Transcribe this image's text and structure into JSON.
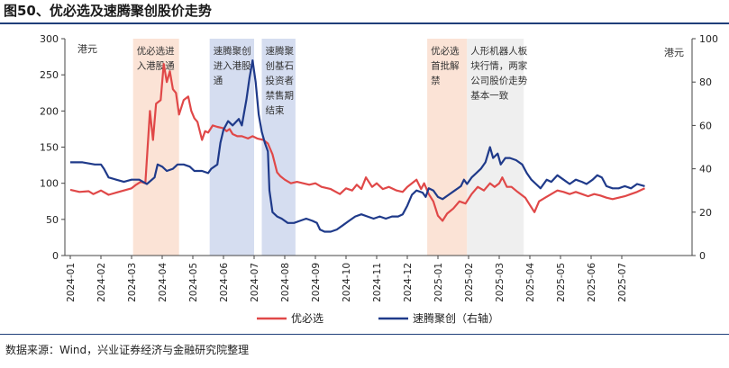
{
  "title": "图50、优必选及速腾聚创股价走势",
  "source": "数据来源：Wind，兴业证券经济与金融研究院整理",
  "colors": {
    "ubtech": "#e04848",
    "robosense": "#1f3a8a",
    "band_orange": "#fbe3d6",
    "band_blue": "#d5ddf0",
    "band_gray": "#efefef"
  },
  "chart_data": {
    "type": "line",
    "title": "图50、优必选及速腾聚创股价走势",
    "xlabel": "",
    "ylabel": "港元",
    "y2label": "港元",
    "ylim": [
      0,
      300
    ],
    "y2lim": [
      0,
      100
    ],
    "yticks": [
      "0",
      "50",
      "100",
      "150",
      "200",
      "250",
      "300"
    ],
    "y2ticks": [
      "0",
      "20",
      "40",
      "60",
      "80",
      "100"
    ],
    "xticks": [
      "2024-01",
      "2024-02",
      "2024-03",
      "2024-04",
      "2024-05",
      "2024-06",
      "2024-07",
      "2024-08",
      "2024-09",
      "2024-10",
      "2024-11",
      "2024-12",
      "2025-01",
      "2025-02",
      "2025-03",
      "2025-04",
      "2025-05",
      "2025-06",
      "2025-07"
    ],
    "x_range": [
      0,
      18.75
    ],
    "legend": [
      "优必选",
      "速腾聚创（右轴）"
    ],
    "series": [
      {
        "name": "优必选",
        "axis": "left",
        "points": [
          [
            0,
            91
          ],
          [
            0.3,
            88
          ],
          [
            0.6,
            89
          ],
          [
            0.75,
            85
          ],
          [
            1.0,
            90
          ],
          [
            1.25,
            84
          ],
          [
            1.5,
            87
          ],
          [
            1.75,
            90
          ],
          [
            2.0,
            93
          ],
          [
            2.15,
            98
          ],
          [
            2.3,
            102
          ],
          [
            2.45,
            100
          ],
          [
            2.6,
            200
          ],
          [
            2.7,
            160
          ],
          [
            2.8,
            210
          ],
          [
            2.95,
            215
          ],
          [
            3.05,
            265
          ],
          [
            3.15,
            240
          ],
          [
            3.25,
            255
          ],
          [
            3.35,
            230
          ],
          [
            3.45,
            225
          ],
          [
            3.55,
            195
          ],
          [
            3.7,
            215
          ],
          [
            3.85,
            220
          ],
          [
            3.95,
            200
          ],
          [
            4.05,
            190
          ],
          [
            4.15,
            185
          ],
          [
            4.3,
            160
          ],
          [
            4.4,
            172
          ],
          [
            4.5,
            170
          ],
          [
            4.65,
            180
          ],
          [
            4.8,
            178
          ],
          [
            5.0,
            176
          ],
          [
            5.1,
            172
          ],
          [
            5.2,
            175
          ],
          [
            5.3,
            168
          ],
          [
            5.45,
            165
          ],
          [
            5.6,
            165
          ],
          [
            5.8,
            162
          ],
          [
            5.95,
            165
          ],
          [
            6.1,
            162
          ],
          [
            6.3,
            160
          ],
          [
            6.45,
            155
          ],
          [
            6.6,
            140
          ],
          [
            6.75,
            115
          ],
          [
            6.85,
            110
          ],
          [
            7.0,
            105
          ],
          [
            7.2,
            100
          ],
          [
            7.4,
            102
          ],
          [
            7.6,
            100
          ],
          [
            7.8,
            98
          ],
          [
            8.0,
            100
          ],
          [
            8.2,
            95
          ],
          [
            8.5,
            92
          ],
          [
            8.8,
            85
          ],
          [
            9.0,
            93
          ],
          [
            9.2,
            90
          ],
          [
            9.35,
            98
          ],
          [
            9.5,
            92
          ],
          [
            9.65,
            108
          ],
          [
            9.85,
            95
          ],
          [
            10.0,
            100
          ],
          [
            10.2,
            92
          ],
          [
            10.4,
            95
          ],
          [
            10.65,
            90
          ],
          [
            10.85,
            88
          ],
          [
            11.0,
            95
          ],
          [
            11.15,
            100
          ],
          [
            11.3,
            105
          ],
          [
            11.45,
            92
          ],
          [
            11.55,
            100
          ],
          [
            11.7,
            85
          ],
          [
            11.85,
            75
          ],
          [
            12.0,
            55
          ],
          [
            12.15,
            48
          ],
          [
            12.3,
            58
          ],
          [
            12.5,
            65
          ],
          [
            12.7,
            75
          ],
          [
            12.9,
            72
          ],
          [
            13.1,
            85
          ],
          [
            13.3,
            95
          ],
          [
            13.5,
            90
          ],
          [
            13.7,
            100
          ],
          [
            13.85,
            95
          ],
          [
            14.0,
            100
          ],
          [
            14.1,
            108
          ],
          [
            14.25,
            95
          ],
          [
            14.4,
            95
          ],
          [
            14.6,
            88
          ],
          [
            14.85,
            80
          ],
          [
            15.0,
            70
          ],
          [
            15.15,
            60
          ],
          [
            15.3,
            75
          ],
          [
            15.5,
            80
          ],
          [
            15.7,
            85
          ],
          [
            15.9,
            90
          ],
          [
            16.1,
            88
          ],
          [
            16.3,
            85
          ],
          [
            16.5,
            88
          ],
          [
            16.7,
            85
          ],
          [
            16.9,
            82
          ],
          [
            17.1,
            85
          ],
          [
            17.3,
            83
          ],
          [
            17.5,
            80
          ],
          [
            17.7,
            78
          ],
          [
            17.9,
            80
          ],
          [
            18.1,
            82
          ],
          [
            18.3,
            85
          ],
          [
            18.5,
            88
          ],
          [
            18.75,
            93
          ]
        ]
      },
      {
        "name": "速腾聚创（右轴）",
        "axis": "right",
        "points": [
          [
            0,
            43
          ],
          [
            0.4,
            43
          ],
          [
            0.8,
            42
          ],
          [
            1.0,
            42
          ],
          [
            1.1,
            40
          ],
          [
            1.25,
            36
          ],
          [
            1.5,
            35
          ],
          [
            1.75,
            34
          ],
          [
            2.0,
            35
          ],
          [
            2.25,
            35
          ],
          [
            2.5,
            33
          ],
          [
            2.75,
            36
          ],
          [
            2.85,
            42
          ],
          [
            3.0,
            41
          ],
          [
            3.15,
            39
          ],
          [
            3.35,
            40
          ],
          [
            3.5,
            42
          ],
          [
            3.7,
            42
          ],
          [
            3.9,
            41
          ],
          [
            4.05,
            39
          ],
          [
            4.3,
            39
          ],
          [
            4.5,
            38
          ],
          [
            4.6,
            40
          ],
          [
            4.8,
            42
          ],
          [
            4.9,
            52
          ],
          [
            5.0,
            58
          ],
          [
            5.15,
            62
          ],
          [
            5.3,
            60
          ],
          [
            5.5,
            63
          ],
          [
            5.6,
            60
          ],
          [
            5.75,
            72
          ],
          [
            5.85,
            82
          ],
          [
            5.95,
            90
          ],
          [
            6.05,
            80
          ],
          [
            6.15,
            65
          ],
          [
            6.25,
            57
          ],
          [
            6.35,
            52
          ],
          [
            6.45,
            48
          ],
          [
            6.5,
            30
          ],
          [
            6.6,
            20
          ],
          [
            6.75,
            18
          ],
          [
            6.9,
            17
          ],
          [
            7.1,
            15
          ],
          [
            7.3,
            15
          ],
          [
            7.5,
            16
          ],
          [
            7.7,
            17
          ],
          [
            7.9,
            16
          ],
          [
            8.05,
            15
          ],
          [
            8.15,
            12
          ],
          [
            8.3,
            11
          ],
          [
            8.5,
            11
          ],
          [
            8.7,
            12
          ],
          [
            8.9,
            14
          ],
          [
            9.1,
            16
          ],
          [
            9.3,
            18
          ],
          [
            9.5,
            19
          ],
          [
            9.7,
            18
          ],
          [
            9.9,
            17
          ],
          [
            10.1,
            18
          ],
          [
            10.3,
            17
          ],
          [
            10.5,
            18
          ],
          [
            10.7,
            18
          ],
          [
            10.85,
            19
          ],
          [
            11.0,
            23
          ],
          [
            11.15,
            28
          ],
          [
            11.3,
            30
          ],
          [
            11.5,
            29
          ],
          [
            11.6,
            27
          ],
          [
            11.7,
            31
          ],
          [
            11.85,
            30
          ],
          [
            12.0,
            27
          ],
          [
            12.15,
            26
          ],
          [
            12.35,
            28
          ],
          [
            12.55,
            30
          ],
          [
            12.75,
            32
          ],
          [
            12.85,
            35
          ],
          [
            12.95,
            33
          ],
          [
            13.1,
            36
          ],
          [
            13.25,
            38
          ],
          [
            13.4,
            40
          ],
          [
            13.55,
            43
          ],
          [
            13.7,
            50
          ],
          [
            13.8,
            45
          ],
          [
            13.95,
            47
          ],
          [
            14.05,
            42
          ],
          [
            14.2,
            45
          ],
          [
            14.35,
            45
          ],
          [
            14.55,
            44
          ],
          [
            14.75,
            42
          ],
          [
            14.9,
            38
          ],
          [
            15.05,
            35
          ],
          [
            15.2,
            33
          ],
          [
            15.35,
            31
          ],
          [
            15.55,
            35
          ],
          [
            15.7,
            34
          ],
          [
            15.9,
            37
          ],
          [
            16.1,
            35
          ],
          [
            16.3,
            33
          ],
          [
            16.5,
            35
          ],
          [
            16.7,
            34
          ],
          [
            16.85,
            33
          ],
          [
            17.05,
            35
          ],
          [
            17.2,
            37
          ],
          [
            17.35,
            36
          ],
          [
            17.5,
            32
          ],
          [
            17.7,
            31
          ],
          [
            17.9,
            31
          ],
          [
            18.1,
            32
          ],
          [
            18.3,
            31
          ],
          [
            18.5,
            33
          ],
          [
            18.75,
            32
          ]
        ]
      }
    ],
    "annotations": [
      {
        "x0": 2.05,
        "x1": 3.55,
        "fill": "orange",
        "lines": [
          "优必选进",
          "入港股通"
        ]
      },
      {
        "x0": 4.55,
        "x1": 6.0,
        "fill": "blue",
        "lines": [
          "速腾聚创",
          "进入港股",
          "通"
        ]
      },
      {
        "x0": 6.25,
        "x1": 7.35,
        "fill": "blue",
        "lines": [
          "速腾聚",
          "创基石",
          "投资者",
          "禁售期",
          "结束"
        ]
      },
      {
        "x0": 11.65,
        "x1": 12.95,
        "fill": "orange",
        "lines": [
          "优必选",
          "首批解",
          "禁"
        ]
      },
      {
        "x0": 12.95,
        "x1": 14.8,
        "fill": "gray",
        "lines": [
          "人形机器人板",
          "块行情，两家",
          "公司股价走势",
          "基本一致"
        ]
      }
    ]
  }
}
